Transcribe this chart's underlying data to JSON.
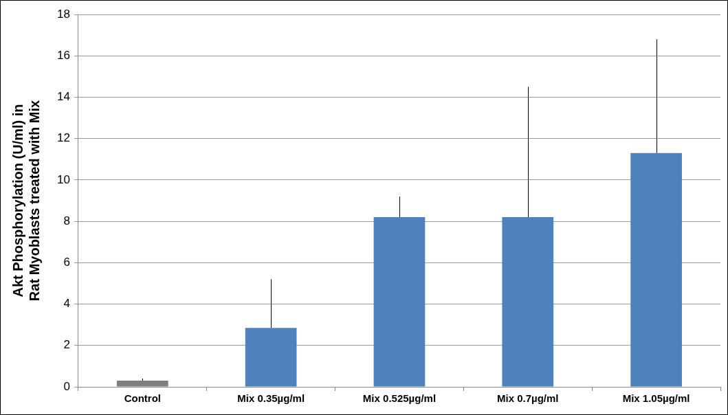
{
  "chart_data": {
    "type": "bar",
    "ylabel": "Akt Phosphorylation (U/ml) in\nRat Myoblasts treated with Mix",
    "categories": [
      "Control",
      "Mix 0.35µg/ml",
      "Mix 0.525µg/ml",
      "Mix 0.7µg/ml",
      "Mix 1.05µg/ml"
    ],
    "values": [
      0.3,
      2.85,
      8.2,
      8.2,
      11.3
    ],
    "errors": [
      [
        0.3,
        0.4
      ],
      [
        2.85,
        5.2
      ],
      [
        8.2,
        9.2
      ],
      [
        8.2,
        14.5
      ],
      [
        11.3,
        16.8
      ]
    ],
    "colors": [
      "#7f7f7f",
      "#4f81bd",
      "#4f81bd",
      "#4f81bd",
      "#4f81bd"
    ],
    "ylim": [
      0,
      18
    ],
    "yticks": [
      0,
      2,
      4,
      6,
      8,
      10,
      12,
      14,
      16,
      18
    ],
    "grid": "y",
    "legend": false
  }
}
